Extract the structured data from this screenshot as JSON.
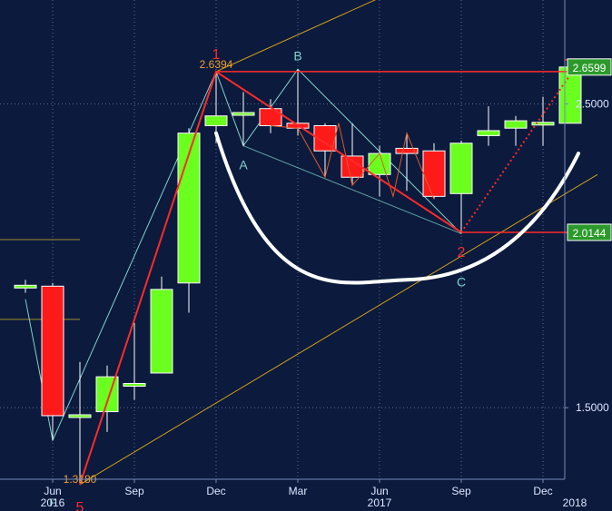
{
  "chart_data": {
    "type": "candlestick",
    "title": "",
    "xlabel": "",
    "ylabel": "",
    "y_scale": "log",
    "ylim": [
      1.33,
      2.95
    ],
    "y_ticks": [
      {
        "value": 2.5,
        "label": "2.5000"
      },
      {
        "value": 1.5,
        "label": "1.5000"
      }
    ],
    "x_ticks": [
      {
        "period": 1,
        "label": "Jun",
        "year": "2016"
      },
      {
        "period": 4,
        "label": "Sep",
        "year": ""
      },
      {
        "period": 7,
        "label": "Dec",
        "year": ""
      },
      {
        "period": 10,
        "label": "Mar",
        "year": ""
      },
      {
        "period": 13,
        "label": "Jun",
        "year": "2017"
      },
      {
        "period": 16,
        "label": "Sep",
        "year": ""
      },
      {
        "period": 19,
        "label": "Dec",
        "year": ""
      },
      {
        "period": 20,
        "label": "",
        "year": "2018"
      }
    ],
    "candles": [
      {
        "period": 0,
        "open": 1.84,
        "high": 1.86,
        "low": 1.82,
        "close": 1.84
      },
      {
        "period": 1,
        "open": 1.84,
        "high": 1.85,
        "low": 1.42,
        "close": 1.48
      },
      {
        "period": 2,
        "open": 1.48,
        "high": 1.62,
        "low": 1.318,
        "close": 1.48
      },
      {
        "period": 3,
        "open": 1.49,
        "high": 1.61,
        "low": 1.44,
        "close": 1.58
      },
      {
        "period": 4,
        "open": 1.56,
        "high": 1.73,
        "low": 1.52,
        "close": 1.56
      },
      {
        "period": 5,
        "open": 1.59,
        "high": 1.87,
        "low": 1.59,
        "close": 1.83
      },
      {
        "period": 6,
        "open": 1.85,
        "high": 2.4,
        "low": 1.76,
        "close": 2.38
      },
      {
        "period": 7,
        "open": 2.41,
        "high": 2.6394,
        "low": 2.34,
        "close": 2.45
      },
      {
        "period": 8,
        "open": 2.46,
        "high": 2.55,
        "low": 2.33,
        "close": 2.46
      },
      {
        "period": 9,
        "open": 2.48,
        "high": 2.52,
        "low": 2.38,
        "close": 2.41
      },
      {
        "period": 10,
        "open": 2.42,
        "high": 2.65,
        "low": 2.37,
        "close": 2.4
      },
      {
        "period": 11,
        "open": 2.41,
        "high": 2.42,
        "low": 2.21,
        "close": 2.31
      },
      {
        "period": 12,
        "open": 2.29,
        "high": 2.42,
        "low": 2.18,
        "close": 2.21
      },
      {
        "period": 13,
        "open": 2.22,
        "high": 2.33,
        "low": 2.14,
        "close": 2.3
      },
      {
        "period": 14,
        "open": 2.32,
        "high": 2.38,
        "low": 2.16,
        "close": 2.3
      },
      {
        "period": 15,
        "open": 2.31,
        "high": 2.34,
        "low": 2.13,
        "close": 2.14
      },
      {
        "period": 16,
        "open": 2.15,
        "high": 2.35,
        "low": 2.01,
        "close": 2.34
      },
      {
        "period": 17,
        "open": 2.37,
        "high": 2.49,
        "low": 2.33,
        "close": 2.39
      },
      {
        "period": 18,
        "open": 2.4,
        "high": 2.45,
        "low": 2.33,
        "close": 2.43
      },
      {
        "period": 19,
        "open": 2.42,
        "high": 2.53,
        "low": 2.33,
        "close": 2.42
      },
      {
        "period": 20,
        "open": 2.42,
        "high": 2.66,
        "low": 2.42,
        "close": 2.6599
      }
    ],
    "horizontal_lines": [
      {
        "value": 2.6394,
        "color": "#ff2a2a",
        "label": ""
      },
      {
        "value": 2.0144,
        "color": "#ff2a2a",
        "label": "2.0144"
      },
      {
        "value": 2.6599,
        "color": "#ff2a2a",
        "label": "2.6599"
      }
    ],
    "olive_levels": [
      {
        "value": 1.99,
        "x_start": -2,
        "x_end": 2
      },
      {
        "value": 1.74,
        "x_start": -2,
        "x_end": 2
      },
      {
        "value": 1.33,
        "x_start": -2,
        "x_end": 2
      }
    ],
    "pattern_zigzag": [
      {
        "period": 2,
        "value": 1.318,
        "label": "5"
      },
      {
        "period": 7,
        "value": 2.6394,
        "label": "1"
      },
      {
        "period": 16,
        "value": 2.0144,
        "label": "2"
      }
    ],
    "projection": {
      "from": {
        "period": 16,
        "value": 2.0144
      },
      "to": {
        "period": 20.2,
        "value": 2.6599
      }
    },
    "harmonic_points": [
      {
        "period": 0,
        "value": 1.8,
        "label": ""
      },
      {
        "period": 1,
        "value": 1.42,
        "label": ""
      },
      {
        "period": 7,
        "value": 2.6394,
        "label": ""
      },
      {
        "period": 8,
        "value": 2.33,
        "label": "A"
      },
      {
        "period": 10,
        "value": 2.65,
        "label": "B"
      },
      {
        "period": 16,
        "value": 2.01,
        "label": "C"
      }
    ],
    "price_labels": [
      {
        "period": 7,
        "value": 2.6394,
        "text": "2.6394"
      },
      {
        "period": 2,
        "value": 1.318,
        "text": "1.3180"
      }
    ],
    "letter_labels": [
      {
        "text": "F",
        "period": 1,
        "value": 1.27
      }
    ],
    "trend_channel": {
      "lower": {
        "from": {
          "period": 2,
          "value": 1.318
        },
        "to": {
          "period": 21,
          "value": 2.22
        }
      },
      "upper": {
        "from": {
          "period": 7,
          "value": 2.6394
        },
        "to": {
          "period": 14,
          "value": 3.05
        }
      }
    },
    "arc": {
      "left": {
        "period": 7,
        "value": 2.38
      },
      "bottom": {
        "period": 14,
        "value": 1.86
      },
      "right": {
        "period": 20.3,
        "value": 2.3
      }
    },
    "colors": {
      "background": "#0b1a3d",
      "up": "#6aff1f",
      "down": "#ff1a1a",
      "zigzag": "#ff2a2a",
      "harmonic": "#7fd4c8",
      "channel": "#d4a017",
      "olive": "#a38b2a",
      "arc": "#ffffff",
      "label_box": "#2b9a2b",
      "grid": "#5a6d94",
      "axis_text": "#dfe6ff"
    }
  }
}
